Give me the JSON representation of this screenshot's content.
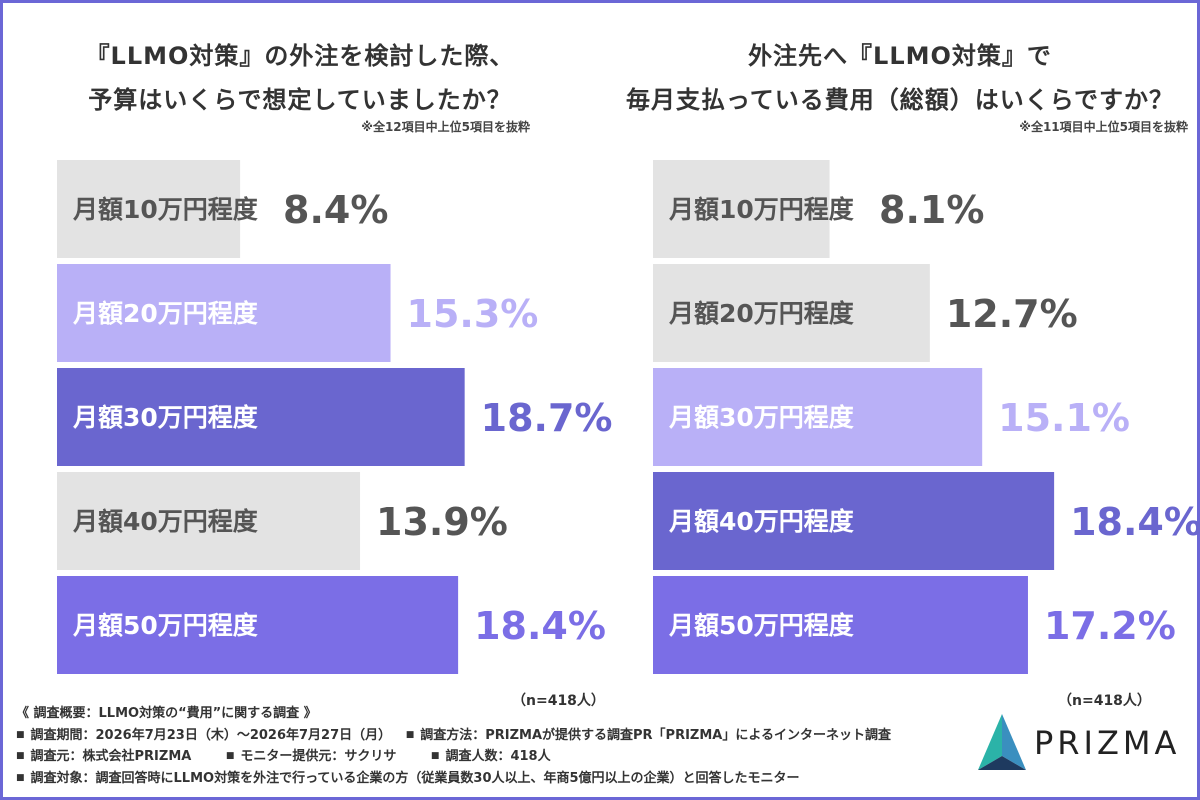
{
  "charts_meta": {
    "left": {
      "title_line1": "『LLMO対策』の外注を検討した際、",
      "title_line2": "予算はいくらで想定していましたか？",
      "note": "※全12項目中上位5項目を抜粋",
      "sample": "（n=418人）"
    },
    "right": {
      "title_line1": "外注先へ『LLMO対策』で",
      "title_line2": "毎月支払っている費用（総額）はいくらですか？",
      "note": "※全11項目中上位5項目を抜粋",
      "sample": "（n=418人）"
    }
  },
  "chart_data": [
    {
      "type": "bar",
      "orientation": "horizontal",
      "title": "『LLMO対策』の外注を検討した際、予算はいくらで想定していましたか？",
      "categories": [
        "月額10万円程度",
        "月額20万円程度",
        "月額30万円程度",
        "月額40万円程度",
        "月額50万円程度"
      ],
      "values": [
        8.4,
        15.3,
        18.7,
        13.9,
        18.4
      ],
      "value_labels": [
        "8.4%",
        "15.3%",
        "18.7%",
        "13.9%",
        "18.4%"
      ],
      "colors": [
        "#e3e3e3",
        "#b9b0f7",
        "#6a66cf",
        "#e3e3e3",
        "#7b6ee6"
      ],
      "label_colors": [
        "#555555",
        "#ffffff",
        "#ffffff",
        "#555555",
        "#ffffff"
      ],
      "value_colors": [
        "#555555",
        "#b9b0f7",
        "#6a66cf",
        "#555555",
        "#7b6ee6"
      ]
    },
    {
      "type": "bar",
      "orientation": "horizontal",
      "title": "外注先へ『LLMO対策』で毎月支払っている費用（総額）はいくらですか？",
      "categories": [
        "月額10万円程度",
        "月額20万円程度",
        "月額30万円程度",
        "月額40万円程度",
        "月額50万円程度"
      ],
      "values": [
        8.1,
        12.7,
        15.1,
        18.4,
        17.2
      ],
      "value_labels": [
        "8.1%",
        "12.7%",
        "15.1%",
        "18.4%",
        "17.2%"
      ],
      "colors": [
        "#e3e3e3",
        "#e3e3e3",
        "#b9b0f7",
        "#6a66cf",
        "#7b6ee6"
      ],
      "label_colors": [
        "#555555",
        "#555555",
        "#ffffff",
        "#ffffff",
        "#ffffff"
      ],
      "value_colors": [
        "#555555",
        "#555555",
        "#b9b0f7",
        "#6a66cf",
        "#7b6ee6"
      ]
    }
  ],
  "footer": {
    "overview": "《 調査概要：LLMO対策の“費用”に関する調査 》",
    "period": "調査期間：2026年7月23日（木）～2026年7月27日（月）",
    "method": "調査方法：PRIZMAが提供する調査PR「PRIZMA」によるインターネット調査",
    "organizer": "調査元：株式会社PRIZMA",
    "monitor": "モニター提供元：サクリサ",
    "count": "調査人数：418人",
    "target": "調査対象：調査回答時にLLMO対策を外注で行っている企業の方（従業員数30人以上、年商5億円以上の企業）と回答したモニター"
  },
  "logo": {
    "text": "PRIZMA",
    "colors": [
      "#2bb3a8",
      "#1e3a5f",
      "#3a8fbf"
    ]
  }
}
